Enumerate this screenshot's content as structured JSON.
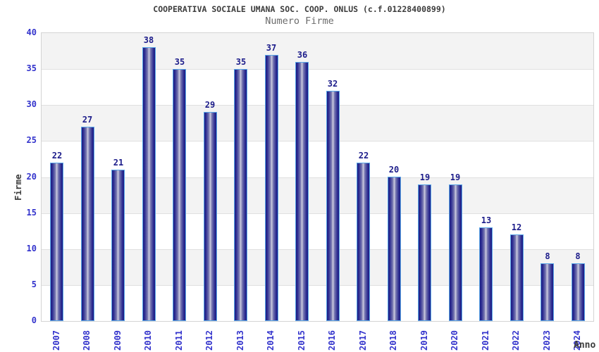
{
  "chart_data": {
    "type": "bar",
    "title": "COOPERATIVA SOCIALE UMANA SOC. COOP. ONLUS (c.f.01228400899)",
    "subtitle": "Numero Firme",
    "xlabel": "Anno",
    "ylabel": "Firme",
    "categories": [
      "2007",
      "2008",
      "2009",
      "2010",
      "2011",
      "2012",
      "2013",
      "2014",
      "2015",
      "2016",
      "2017",
      "2018",
      "2019",
      "2020",
      "2021",
      "2022",
      "2023",
      "2024"
    ],
    "values": [
      22,
      27,
      21,
      38,
      35,
      29,
      35,
      37,
      36,
      32,
      22,
      20,
      19,
      19,
      13,
      12,
      8,
      8
    ],
    "ylim": [
      0,
      40
    ],
    "ytick_step": 5,
    "grid": true,
    "legend": "none",
    "colors": {
      "band_gray": "#f3f3f3",
      "band_white": "#ffffff",
      "gridline": "#e0e0e0",
      "plot_border": "#d4d4d4",
      "bar_edge_dark": "#1d1d83",
      "bar_center_light": "#cdcde0",
      "bar_border": "#5aa7e8",
      "tick_text": "#3333cc",
      "value_text": "#1c1c8a",
      "title_text": "#3c3c3c",
      "subtitle_text": "#6b6b6b"
    }
  }
}
